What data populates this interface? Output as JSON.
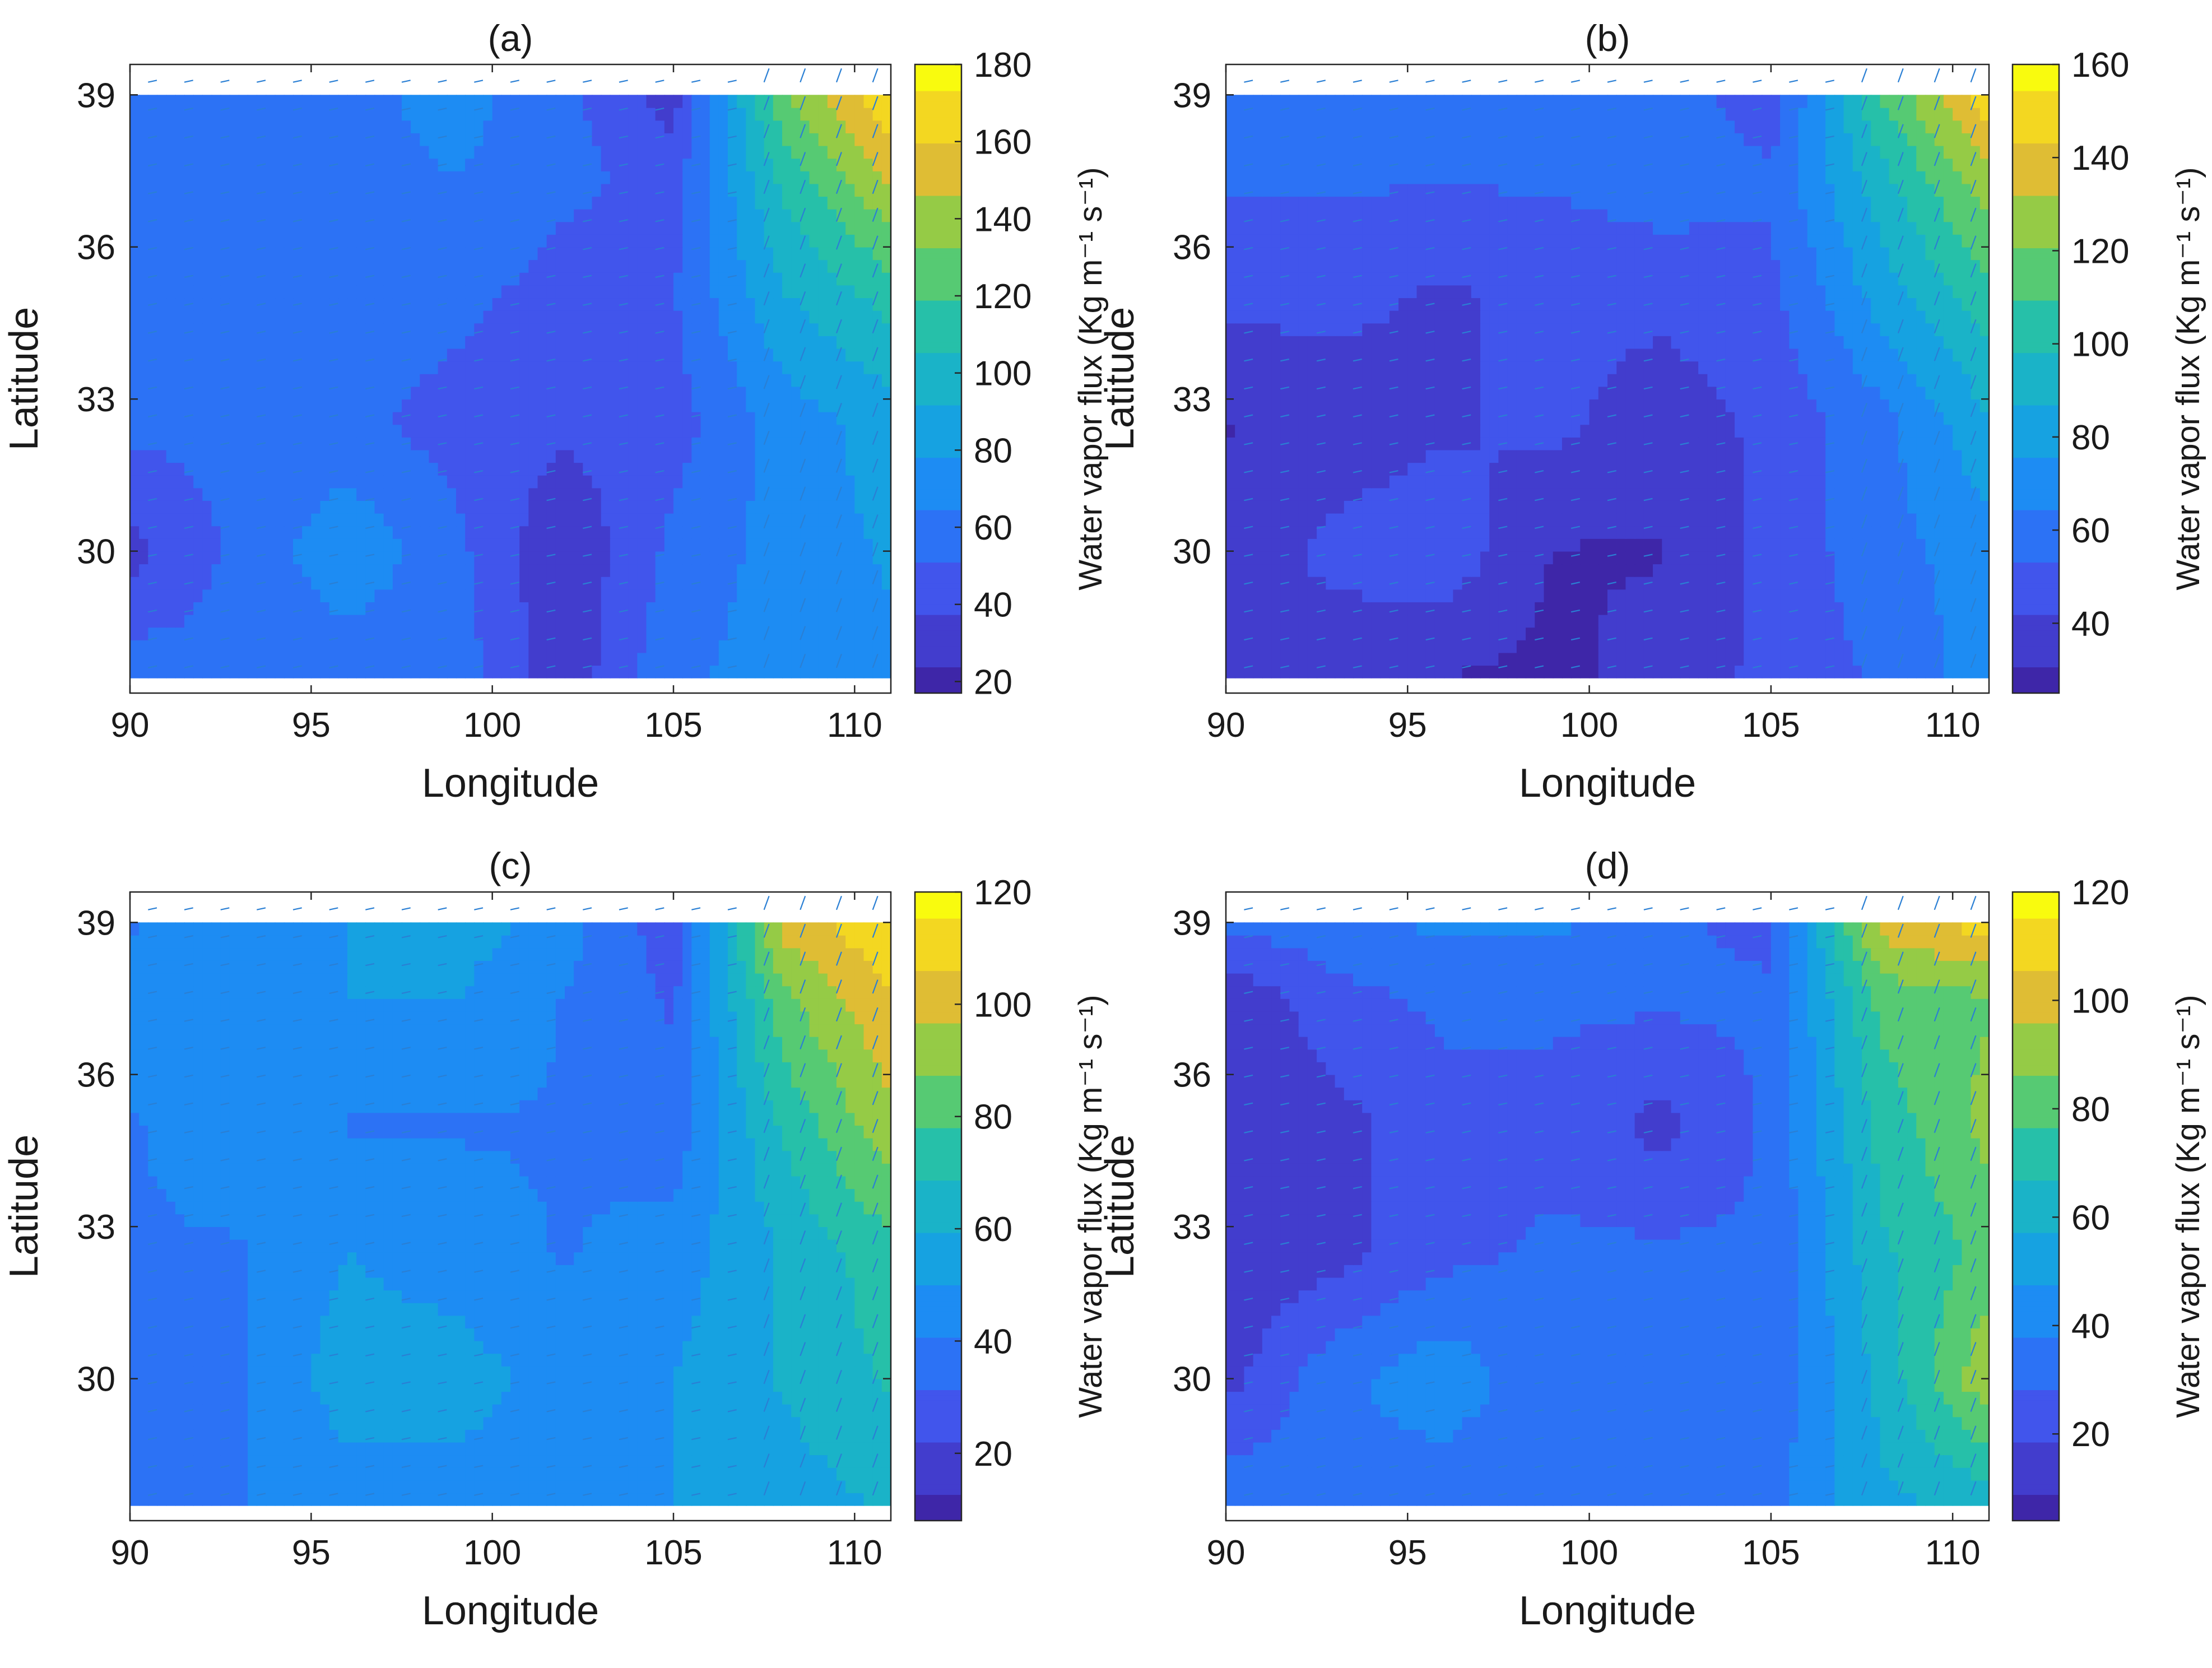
{
  "figure": {
    "panels": [
      "(a)",
      "(b)",
      "(c)",
      "(d)"
    ]
  },
  "chart_data": [
    {
      "type": "heatmap",
      "title": "(a)",
      "xlabel": "Longitude",
      "ylabel": "Latitude",
      "colorbar_label": "Water vapor flux (Kg m⁻¹ s⁻¹)",
      "x_ticks": [
        90,
        95,
        100,
        105,
        110
      ],
      "y_ticks": [
        30,
        33,
        36,
        39
      ],
      "xlim": [
        90,
        111
      ],
      "ylim": [
        27.2,
        39.6
      ],
      "colorbar_range": [
        17,
        180
      ],
      "colorbar_ticks": [
        20,
        40,
        60,
        80,
        100,
        120,
        140,
        160,
        180
      ],
      "grid": false,
      "overlay": "water vapor flux vectors (quiver)",
      "colormap": "parula",
      "data_grid": {
        "lon": [
          90,
          93,
          96,
          99,
          102,
          105,
          108,
          111
        ],
        "lat": [
          27.5,
          30,
          32.5,
          35,
          37.5,
          39
        ],
        "values": [
          [
            60,
            55,
            55,
            58,
            28,
            62,
            70,
            75
          ],
          [
            32,
            55,
            75,
            55,
            25,
            55,
            70,
            80
          ],
          [
            55,
            55,
            55,
            45,
            40,
            45,
            70,
            85
          ],
          [
            60,
            55,
            60,
            55,
            45,
            50,
            90,
            110
          ],
          [
            60,
            60,
            60,
            65,
            55,
            45,
            110,
            150
          ],
          [
            55,
            60,
            60,
            70,
            55,
            30,
            130,
            170
          ]
        ]
      }
    },
    {
      "type": "heatmap",
      "title": "(b)",
      "xlabel": "Longitude",
      "ylabel": "Latitude",
      "colorbar_label": "Water vapor flux (Kg m⁻¹ s⁻¹)",
      "x_ticks": [
        90,
        95,
        100,
        105,
        110
      ],
      "y_ticks": [
        30,
        33,
        36,
        39
      ],
      "xlim": [
        90,
        111
      ],
      "ylim": [
        27.2,
        39.6
      ],
      "colorbar_range": [
        25,
        160
      ],
      "colorbar_ticks": [
        40,
        60,
        80,
        100,
        120,
        140,
        160
      ],
      "grid": false,
      "overlay": "water vapor flux vectors (quiver)",
      "colormap": "parula",
      "data_grid": {
        "lon": [
          90,
          93,
          96,
          99,
          102,
          105,
          108,
          111
        ],
        "lat": [
          27.5,
          30,
          32.5,
          35,
          37.5,
          39
        ],
        "values": [
          [
            40,
            35,
            30,
            28,
            35,
            45,
            55,
            70
          ],
          [
            35,
            45,
            50,
            30,
            30,
            45,
            60,
            70
          ],
          [
            30,
            35,
            40,
            45,
            35,
            45,
            60,
            85
          ],
          [
            45,
            45,
            40,
            45,
            45,
            50,
            80,
            105
          ],
          [
            55,
            55,
            55,
            55,
            60,
            55,
            95,
            130
          ],
          [
            55,
            60,
            60,
            60,
            60,
            45,
            110,
            150
          ]
        ]
      }
    },
    {
      "type": "heatmap",
      "title": "(c)",
      "xlabel": "Longitude",
      "ylabel": "Latitude",
      "colorbar_label": "Water vapor flux (Kg m⁻¹ s⁻¹)",
      "x_ticks": [
        90,
        95,
        100,
        105,
        110
      ],
      "y_ticks": [
        30,
        33,
        36,
        39
      ],
      "xlim": [
        90,
        111
      ],
      "ylim": [
        27.2,
        39.6
      ],
      "colorbar_range": [
        8,
        120
      ],
      "colorbar_ticks": [
        20,
        40,
        60,
        80,
        100,
        120
      ],
      "grid": false,
      "overlay": "water vapor flux vectors (quiver)",
      "colormap": "parula",
      "data_grid": {
        "lon": [
          90,
          93,
          96,
          99,
          102,
          105,
          108,
          111
        ],
        "lat": [
          27.5,
          30,
          32.5,
          35,
          37.5,
          39
        ],
        "values": [
          [
            40,
            40,
            45,
            45,
            45,
            50,
            55,
            60
          ],
          [
            35,
            40,
            55,
            55,
            45,
            50,
            60,
            70
          ],
          [
            40,
            40,
            50,
            45,
            40,
            45,
            60,
            75
          ],
          [
            40,
            45,
            40,
            40,
            40,
            35,
            70,
            95
          ],
          [
            45,
            45,
            50,
            50,
            40,
            30,
            85,
            105
          ],
          [
            40,
            45,
            50,
            55,
            45,
            25,
            100,
            115
          ]
        ]
      }
    },
    {
      "type": "heatmap",
      "title": "(d)",
      "xlabel": "Longitude",
      "ylabel": "Latitude",
      "colorbar_label": "Water vapor flux (Kg m⁻¹ s⁻¹)",
      "x_ticks": [
        90,
        95,
        100,
        105,
        110
      ],
      "y_ticks": [
        30,
        33,
        36,
        39
      ],
      "xlim": [
        90,
        111
      ],
      "ylim": [
        27.2,
        39.6
      ],
      "colorbar_range": [
        4,
        120
      ],
      "colorbar_ticks": [
        20,
        40,
        60,
        80,
        100,
        120
      ],
      "grid": false,
      "overlay": "water vapor flux vectors (quiver)",
      "colormap": "parula",
      "data_grid": {
        "lon": [
          90,
          93,
          96,
          99,
          102,
          105,
          108,
          111
        ],
        "lat": [
          27.5,
          30,
          32.5,
          35,
          37.5,
          39
        ],
        "values": [
          [
            35,
            35,
            30,
            30,
            30,
            35,
            55,
            60
          ],
          [
            15,
            35,
            45,
            30,
            30,
            30,
            60,
            95
          ],
          [
            10,
            15,
            25,
            30,
            30,
            30,
            65,
            80
          ],
          [
            10,
            15,
            25,
            25,
            15,
            30,
            70,
            90
          ],
          [
            10,
            25,
            30,
            30,
            30,
            30,
            80,
            85
          ],
          [
            30,
            35,
            40,
            40,
            30,
            25,
            100,
            110
          ]
        ]
      }
    }
  ]
}
